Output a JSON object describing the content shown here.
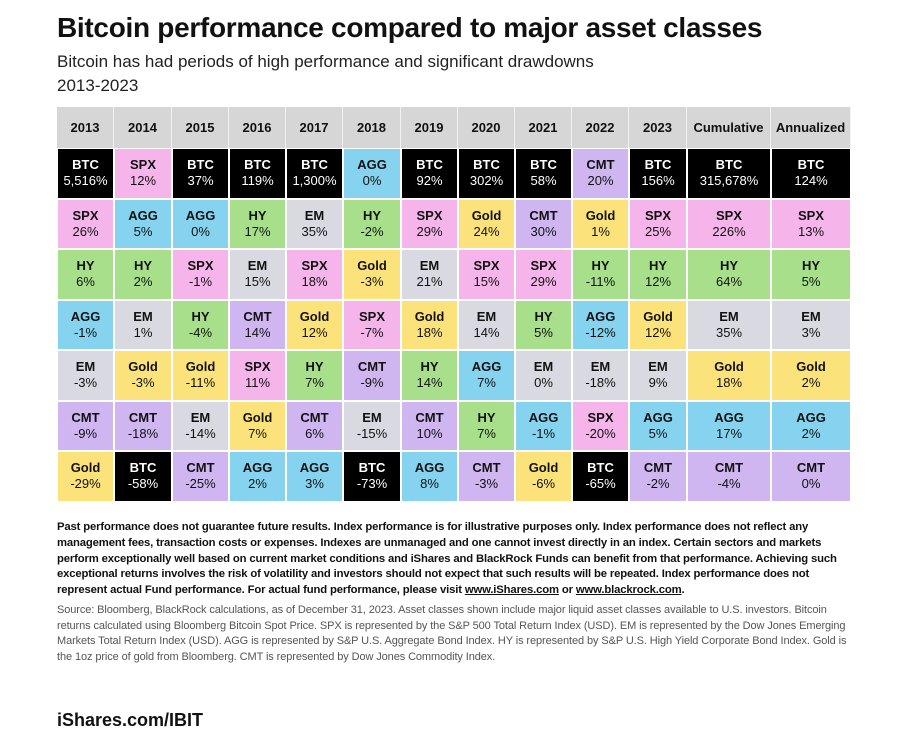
{
  "title": "Bitcoin performance compared to major asset classes",
  "subtitle": "Bitcoin has had periods of high performance and significant drawdowns",
  "period": "2013-2023",
  "colors": {
    "BTC": "#000000",
    "SPX": "#f5b5ea",
    "AGG": "#85d3ef",
    "HY": "#a7df8b",
    "EM": "#d9d9e1",
    "Gold": "#fbe27a",
    "CMT": "#cfb6f1",
    "header": "#d6d6d6"
  },
  "chart_data": {
    "type": "table",
    "title": "Bitcoin performance compared to major asset classes",
    "columns": [
      "2013",
      "2014",
      "2015",
      "2016",
      "2017",
      "2018",
      "2019",
      "2020",
      "2021",
      "2022",
      "2023",
      "Cumulative",
      "Annualized"
    ],
    "cells": [
      [
        {
          "asset": "BTC",
          "value": "5,516%"
        },
        {
          "asset": "SPX",
          "value": "26%"
        },
        {
          "asset": "HY",
          "value": "6%"
        },
        {
          "asset": "AGG",
          "value": "-1%"
        },
        {
          "asset": "EM",
          "value": "-3%"
        },
        {
          "asset": "CMT",
          "value": "-9%"
        },
        {
          "asset": "Gold",
          "value": "-29%"
        }
      ],
      [
        {
          "asset": "SPX",
          "value": "12%"
        },
        {
          "asset": "AGG",
          "value": "5%"
        },
        {
          "asset": "HY",
          "value": "2%"
        },
        {
          "asset": "EM",
          "value": "1%"
        },
        {
          "asset": "Gold",
          "value": "-3%"
        },
        {
          "asset": "CMT",
          "value": "-18%"
        },
        {
          "asset": "BTC",
          "value": "-58%"
        }
      ],
      [
        {
          "asset": "BTC",
          "value": "37%"
        },
        {
          "asset": "AGG",
          "value": "0%"
        },
        {
          "asset": "SPX",
          "value": "-1%"
        },
        {
          "asset": "HY",
          "value": "-4%"
        },
        {
          "asset": "Gold",
          "value": "-11%"
        },
        {
          "asset": "EM",
          "value": "-14%"
        },
        {
          "asset": "CMT",
          "value": "-25%"
        }
      ],
      [
        {
          "asset": "BTC",
          "value": "119%"
        },
        {
          "asset": "HY",
          "value": "17%"
        },
        {
          "asset": "EM",
          "value": "15%"
        },
        {
          "asset": "CMT",
          "value": "14%"
        },
        {
          "asset": "SPX",
          "value": "11%"
        },
        {
          "asset": "Gold",
          "value": "7%"
        },
        {
          "asset": "AGG",
          "value": "2%"
        }
      ],
      [
        {
          "asset": "BTC",
          "value": "1,300%"
        },
        {
          "asset": "EM",
          "value": "35%"
        },
        {
          "asset": "SPX",
          "value": "18%"
        },
        {
          "asset": "Gold",
          "value": "12%"
        },
        {
          "asset": "HY",
          "value": "7%"
        },
        {
          "asset": "CMT",
          "value": "6%"
        },
        {
          "asset": "AGG",
          "value": "3%"
        }
      ],
      [
        {
          "asset": "AGG",
          "value": "0%"
        },
        {
          "asset": "HY",
          "value": "-2%"
        },
        {
          "asset": "Gold",
          "value": "-3%"
        },
        {
          "asset": "SPX",
          "value": "-7%"
        },
        {
          "asset": "CMT",
          "value": "-9%"
        },
        {
          "asset": "EM",
          "value": "-15%"
        },
        {
          "asset": "BTC",
          "value": "-73%"
        }
      ],
      [
        {
          "asset": "BTC",
          "value": "92%"
        },
        {
          "asset": "SPX",
          "value": "29%"
        },
        {
          "asset": "EM",
          "value": "21%"
        },
        {
          "asset": "Gold",
          "value": "18%"
        },
        {
          "asset": "HY",
          "value": "14%"
        },
        {
          "asset": "CMT",
          "value": "10%"
        },
        {
          "asset": "AGG",
          "value": "8%"
        }
      ],
      [
        {
          "asset": "BTC",
          "value": "302%"
        },
        {
          "asset": "Gold",
          "value": "24%"
        },
        {
          "asset": "SPX",
          "value": "15%"
        },
        {
          "asset": "EM",
          "value": "14%"
        },
        {
          "asset": "AGG",
          "value": "7%"
        },
        {
          "asset": "HY",
          "value": "7%"
        },
        {
          "asset": "CMT",
          "value": "-3%"
        }
      ],
      [
        {
          "asset": "BTC",
          "value": "58%"
        },
        {
          "asset": "CMT",
          "value": "30%"
        },
        {
          "asset": "SPX",
          "value": "29%"
        },
        {
          "asset": "HY",
          "value": "5%"
        },
        {
          "asset": "EM",
          "value": "0%"
        },
        {
          "asset": "AGG",
          "value": "-1%"
        },
        {
          "asset": "Gold",
          "value": "-6%"
        }
      ],
      [
        {
          "asset": "CMT",
          "value": "20%"
        },
        {
          "asset": "Gold",
          "value": "1%"
        },
        {
          "asset": "HY",
          "value": "-11%"
        },
        {
          "asset": "AGG",
          "value": "-12%"
        },
        {
          "asset": "EM",
          "value": "-18%"
        },
        {
          "asset": "SPX",
          "value": "-20%"
        },
        {
          "asset": "BTC",
          "value": "-65%"
        }
      ],
      [
        {
          "asset": "BTC",
          "value": "156%"
        },
        {
          "asset": "SPX",
          "value": "25%"
        },
        {
          "asset": "HY",
          "value": "12%"
        },
        {
          "asset": "Gold",
          "value": "12%"
        },
        {
          "asset": "EM",
          "value": "9%"
        },
        {
          "asset": "AGG",
          "value": "5%"
        },
        {
          "asset": "CMT",
          "value": "-2%"
        }
      ],
      [
        {
          "asset": "BTC",
          "value": "315,678%"
        },
        {
          "asset": "SPX",
          "value": "226%"
        },
        {
          "asset": "HY",
          "value": "64%"
        },
        {
          "asset": "EM",
          "value": "35%"
        },
        {
          "asset": "Gold",
          "value": "18%"
        },
        {
          "asset": "AGG",
          "value": "17%"
        },
        {
          "asset": "CMT",
          "value": "-4%"
        }
      ],
      [
        {
          "asset": "BTC",
          "value": "124%"
        },
        {
          "asset": "SPX",
          "value": "13%"
        },
        {
          "asset": "HY",
          "value": "5%"
        },
        {
          "asset": "EM",
          "value": "3%"
        },
        {
          "asset": "Gold",
          "value": "2%"
        },
        {
          "asset": "AGG",
          "value": "2%"
        },
        {
          "asset": "CMT",
          "value": "0%"
        }
      ]
    ]
  },
  "disclaimer": {
    "text": "Past performance does not guarantee future results. Index performance is for illustrative purposes only.  Index performance does not reflect any management fees, transaction costs or expenses. Indexes are unmanaged and one cannot invest directly in an index. Certain sectors and markets perform exceptionally well based on current market conditions and iShares and BlackRock Funds can benefit from that performance. Achieving such exceptional returns involves the risk of volatility and investors should not expect that such results will be repeated. Index performance does not represent actual Fund performance. For actual fund performance, please visit",
    "link1": "www.iShares.com",
    "or": "or",
    "link2": "www.blackrock.com",
    "end": "."
  },
  "source": "Source: Bloomberg, BlackRock calculations, as of December 31, 2023. Asset classes shown include major liquid asset classes available to U.S. investors. Bitcoin returns calculated using Bloomberg Bitcoin Spot Price. SPX is represented by the S&P 500 Total Return Index (USD). EM is represented by the Dow Jones Emerging Markets Total Return Index (USD). AGG is represented by S&P U.S. Aggregate Bond Index. HY is represented by S&P U.S. High Yield Corporate Bond Index. Gold is the 1oz price of gold from Bloomberg. CMT is represented by Dow Jones Commodity Index.",
  "footer": "iShares.com/IBIT"
}
